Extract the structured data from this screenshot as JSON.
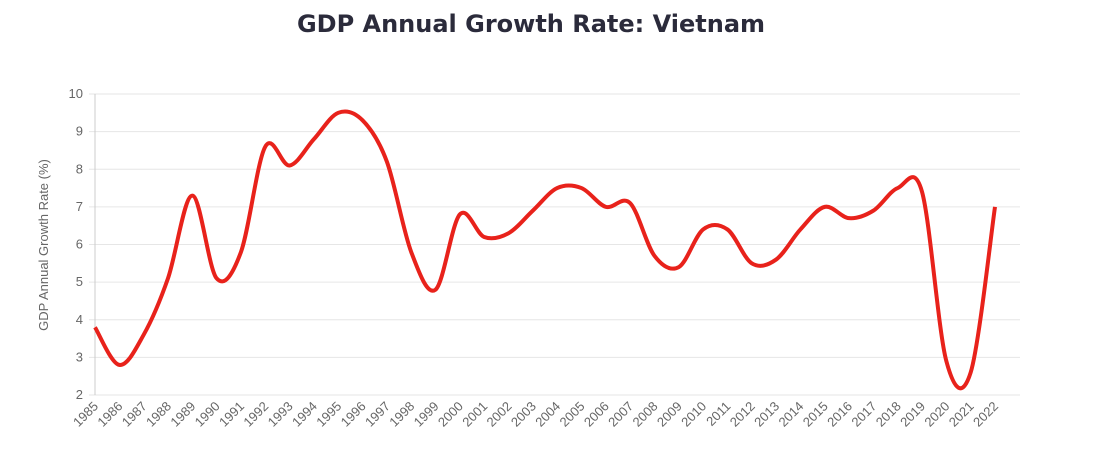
{
  "chart_data": {
    "type": "line",
    "title": "GDP Annual Growth Rate: Vietnam",
    "y_label": "GDP Annual Growth Rate (%)",
    "categories": [
      "1985",
      "1986",
      "1987",
      "1988",
      "1989",
      "1990",
      "1991",
      "1992",
      "1993",
      "1994",
      "1995",
      "1996",
      "1997",
      "1998",
      "1999",
      "2000",
      "2001",
      "2002",
      "2003",
      "2004",
      "2005",
      "2006",
      "2007",
      "2008",
      "2009",
      "2010",
      "2011",
      "2012",
      "2013",
      "2014",
      "2015",
      "2016",
      "2017",
      "2018",
      "2019",
      "2020",
      "2021",
      "2022"
    ],
    "series": [
      {
        "name": "GDP Annual Growth Rate",
        "color": "#e8221b",
        "values": [
          3.8,
          2.8,
          3.6,
          5.1,
          7.3,
          5.1,
          5.8,
          8.6,
          8.1,
          8.8,
          9.5,
          9.3,
          8.2,
          5.8,
          4.8,
          6.8,
          6.2,
          6.3,
          6.9,
          7.5,
          7.5,
          7.0,
          7.1,
          5.7,
          5.4,
          6.4,
          6.4,
          5.5,
          5.6,
          6.4,
          7.0,
          6.7,
          6.9,
          7.5,
          7.4,
          2.9,
          2.6,
          7.0
        ]
      }
    ],
    "ylim": [
      2,
      10
    ],
    "yticks": [
      2,
      3,
      4,
      5,
      6,
      7,
      8,
      9,
      10
    ],
    "grid": true
  }
}
